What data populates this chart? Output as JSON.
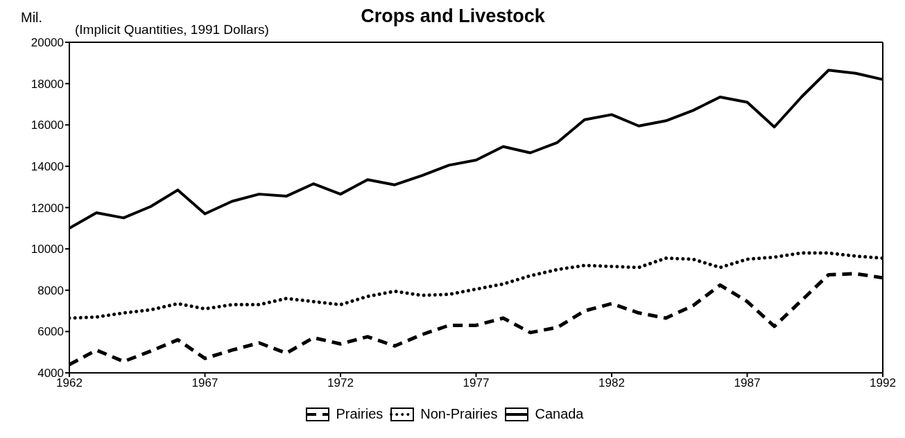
{
  "chart_data": {
    "type": "line",
    "title": "Crops and Livestock",
    "subtitle": "(Implicit Quantities, 1991 Dollars)",
    "ylabel": "Mil.",
    "x": [
      1962,
      1963,
      1964,
      1965,
      1966,
      1967,
      1968,
      1969,
      1970,
      1971,
      1972,
      1973,
      1974,
      1975,
      1976,
      1977,
      1978,
      1979,
      1980,
      1981,
      1982,
      1983,
      1984,
      1985,
      1986,
      1987,
      1988,
      1989,
      1990,
      1991,
      1992
    ],
    "series": [
      {
        "name": "Prairies",
        "color": "#000000",
        "line_style": "dashed",
        "values": [
          4400,
          5100,
          4550,
          5050,
          5600,
          4700,
          5100,
          5450,
          4950,
          5700,
          5400,
          5750,
          5300,
          5850,
          6300,
          6300,
          6650,
          5950,
          6200,
          7000,
          7350,
          6900,
          6650,
          7250,
          8250,
          7450,
          6250,
          7500,
          8750,
          8800,
          8600
        ]
      },
      {
        "name": "Non-Prairies",
        "color": "#000000",
        "line_style": "dotted",
        "values": [
          6650,
          6700,
          6900,
          7050,
          7350,
          7100,
          7300,
          7300,
          7600,
          7450,
          7300,
          7700,
          7950,
          7750,
          7800,
          8050,
          8300,
          8700,
          9000,
          9200,
          9150,
          9100,
          9550,
          9500,
          9100,
          9500,
          9600,
          9800,
          9800,
          9650,
          9550
        ]
      },
      {
        "name": "Canada",
        "color": "#000000",
        "line_style": "solid",
        "values": [
          11000,
          11750,
          11500,
          12050,
          12850,
          11700,
          12300,
          12650,
          12550,
          13150,
          12650,
          13350,
          13100,
          13550,
          14050,
          14300,
          14950,
          14650,
          15150,
          16250,
          16500,
          15950,
          16200,
          16700,
          17350,
          17100,
          15900,
          17350,
          18650,
          18500,
          18200
        ]
      }
    ],
    "xlim": [
      1962,
      1992
    ],
    "xticks": [
      1962,
      1967,
      1972,
      1977,
      1982,
      1987,
      1992
    ],
    "ylim": [
      4000,
      20000
    ],
    "yticks": [
      4000,
      6000,
      8000,
      10000,
      12000,
      14000,
      16000,
      18000,
      20000
    ],
    "grid": false,
    "legend": "bottom",
    "marker": "none"
  }
}
